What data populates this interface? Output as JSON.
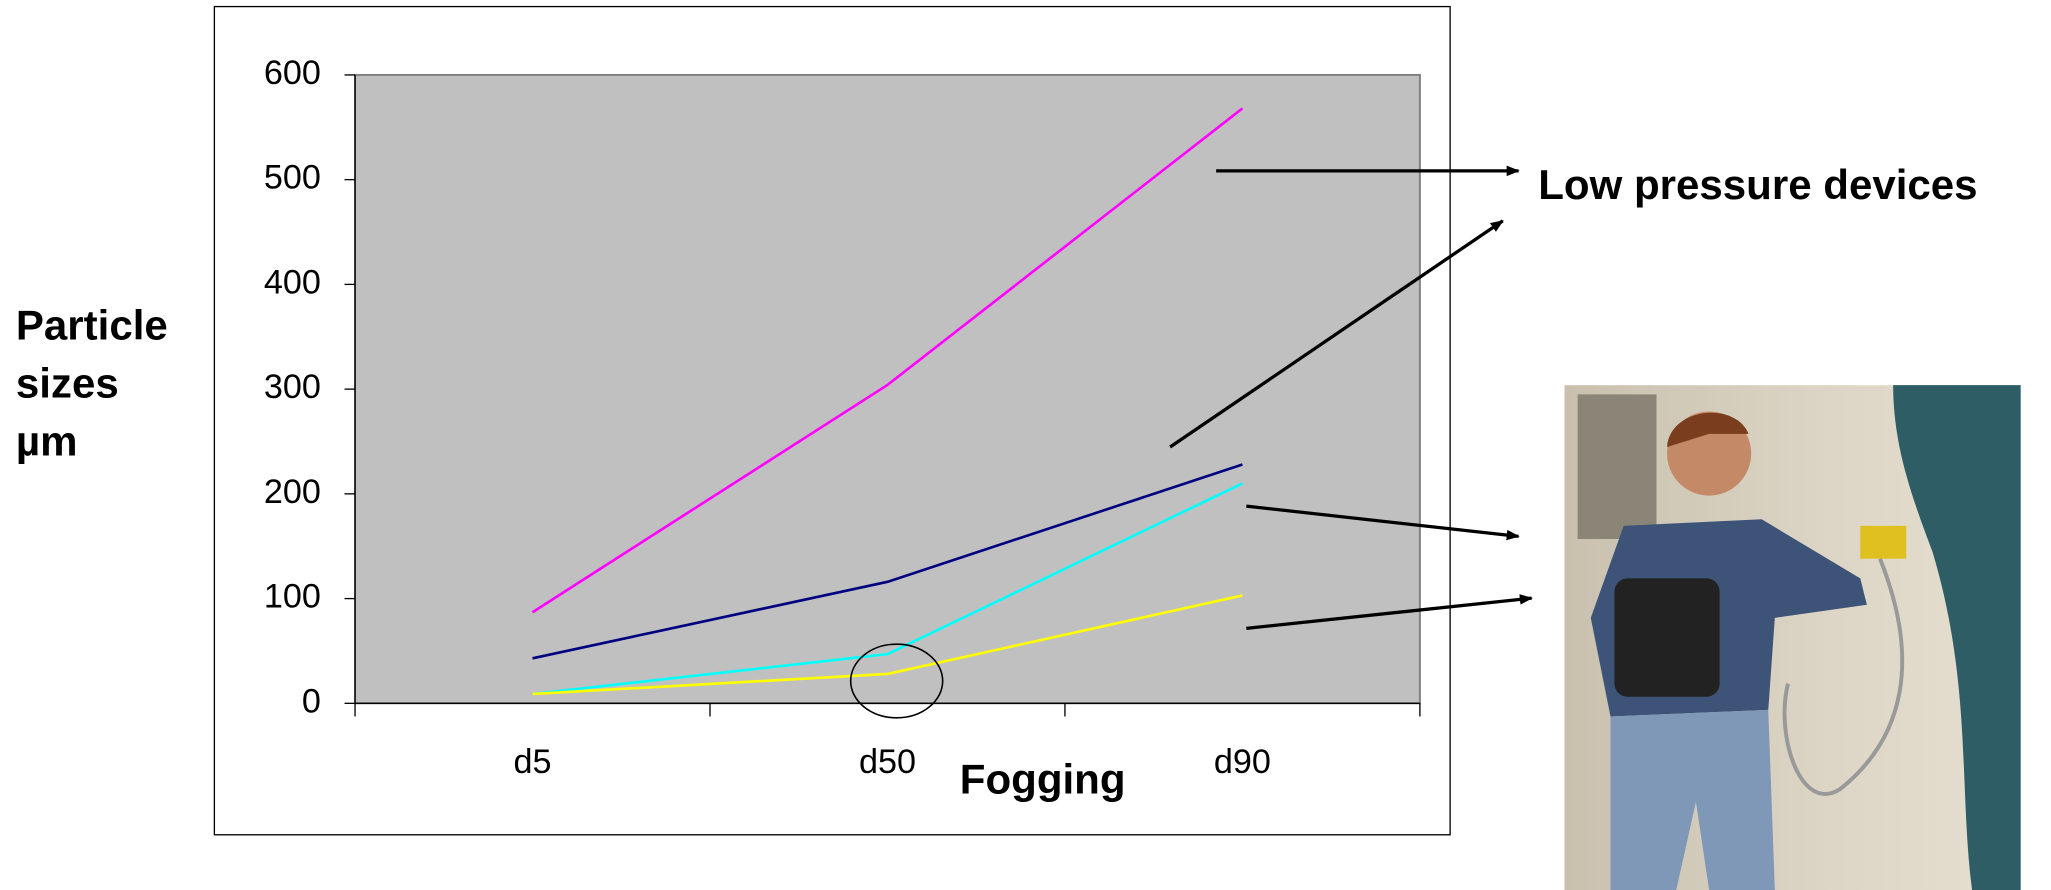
{
  "chart_data": {
    "type": "line",
    "categories": [
      "d5",
      "d50",
      "d90"
    ],
    "series": [
      {
        "color": "#ff00ff",
        "values": [
          87,
          304,
          568
        ]
      },
      {
        "color": "#000080",
        "values": [
          43,
          116,
          228
        ]
      },
      {
        "color": "#00ffff",
        "values": [
          9,
          47,
          210
        ]
      },
      {
        "color": "#ffff00",
        "values": [
          9,
          28,
          103
        ]
      }
    ],
    "ylim": [
      0,
      600
    ],
    "yticks": [
      0,
      100,
      200,
      300,
      400,
      500,
      600
    ],
    "ylabel": [
      "Particle",
      "sizes",
      "µm"
    ],
    "xlabel": "Fogging",
    "annotation": "Low pressure devices",
    "plot_background": "#c0c0c0"
  }
}
